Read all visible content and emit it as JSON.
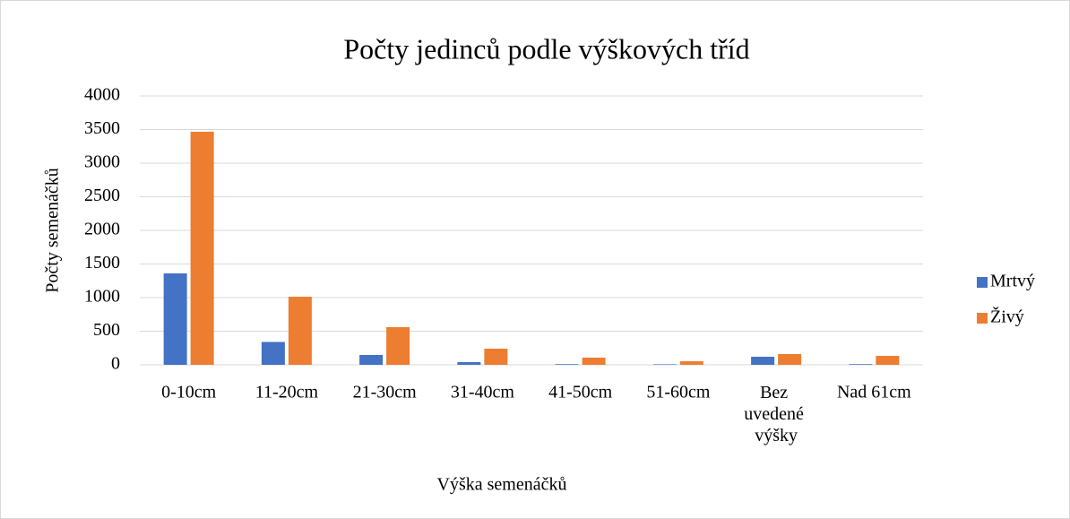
{
  "chart_data": {
    "type": "bar",
    "title": "Počty jedinců podle výškových tříd",
    "x_label": "Výška semenáčků",
    "y_label": "Počty semenáčků",
    "categories": [
      "0-10cm",
      "11-20cm",
      "21-30cm",
      "31-40cm",
      "41-50cm",
      "51-60cm",
      "Bez uvedené výšky",
      "Nad 61cm"
    ],
    "series": [
      {
        "name": "Mrtvý",
        "color": "#4472c4",
        "values": [
          1360,
          340,
          147,
          40,
          10,
          8,
          120,
          10
        ]
      },
      {
        "name": "Živý",
        "color": "#ed7d31",
        "values": [
          3467,
          1013,
          560,
          240,
          107,
          53,
          160,
          133
        ]
      }
    ],
    "ylim": [
      0,
      4000
    ],
    "yticks": [
      0,
      500,
      1000,
      1500,
      2000,
      2500,
      3000,
      3500,
      4000
    ],
    "grid": true,
    "legend": "right"
  }
}
